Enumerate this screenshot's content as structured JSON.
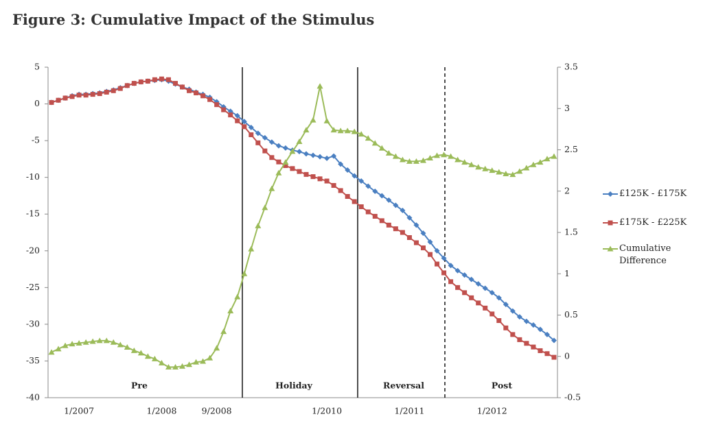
{
  "chart_data": {
    "type": "line",
    "title": "Figure 3: Cumulative Impact of the Stimulus",
    "categories": [
      null,
      null,
      null,
      null,
      "1/2007",
      null,
      null,
      null,
      null,
      null,
      null,
      null,
      null,
      null,
      null,
      null,
      "1/2008",
      null,
      null,
      null,
      null,
      null,
      null,
      null,
      "9/2008",
      null,
      null,
      null,
      null,
      null,
      null,
      null,
      null,
      null,
      null,
      null,
      null,
      null,
      null,
      null,
      "1/2010",
      null,
      null,
      null,
      null,
      null,
      null,
      null,
      null,
      null,
      null,
      null,
      "1/2011",
      null,
      null,
      null,
      null,
      null,
      null,
      null,
      null,
      null,
      null,
      null,
      "1/2012",
      null,
      null,
      null,
      null,
      null,
      null,
      null,
      null,
      null
    ],
    "series": [
      {
        "name": "£125K - £175K",
        "color": "#4a7fc1",
        "marker": "diamond",
        "values": [
          0.2,
          0.5,
          0.8,
          1.1,
          1.3,
          1.3,
          1.4,
          1.5,
          1.7,
          1.9,
          2.2,
          2.5,
          2.8,
          3.0,
          3.1,
          3.2,
          3.3,
          3.1,
          2.7,
          2.3,
          2.0,
          1.6,
          1.3,
          0.9,
          0.3,
          -0.4,
          -1.0,
          -1.6,
          -2.4,
          -3.2,
          -4.0,
          -4.6,
          -5.2,
          -5.7,
          -6.0,
          -6.3,
          -6.5,
          -6.8,
          -7.0,
          -7.2,
          -7.4,
          -7.1,
          -8.2,
          -9.0,
          -9.8,
          -10.5,
          -11.2,
          -11.9,
          -12.5,
          -13.1,
          -13.8,
          -14.5,
          -15.5,
          -16.5,
          -17.6,
          -18.8,
          -20.0,
          -21.0,
          -22.0,
          -22.7,
          -23.3,
          -23.9,
          -24.5,
          -25.1,
          -25.7,
          -26.4,
          -27.3,
          -28.2,
          -29.0,
          -29.6,
          -30.1,
          -30.7,
          -31.4,
          -32.2
        ]
      },
      {
        "name": "£175K - £225K",
        "color": "#c0504d",
        "marker": "square",
        "values": [
          0.2,
          0.5,
          0.8,
          1.0,
          1.2,
          1.2,
          1.3,
          1.4,
          1.6,
          1.8,
          2.1,
          2.5,
          2.8,
          3.0,
          3.1,
          3.3,
          3.4,
          3.3,
          2.8,
          2.3,
          1.8,
          1.5,
          1.1,
          0.6,
          -0.1,
          -0.8,
          -1.5,
          -2.3,
          -3.1,
          -4.2,
          -5.3,
          -6.4,
          -7.3,
          -7.9,
          -8.4,
          -8.8,
          -9.2,
          -9.6,
          -9.9,
          -10.2,
          -10.5,
          -11.1,
          -11.8,
          -12.6,
          -13.3,
          -14.0,
          -14.7,
          -15.3,
          -15.9,
          -16.5,
          -17.0,
          -17.5,
          -18.2,
          -18.9,
          -19.6,
          -20.5,
          -21.8,
          -23.0,
          -24.2,
          -25.0,
          -25.7,
          -26.4,
          -27.1,
          -27.8,
          -28.6,
          -29.5,
          -30.5,
          -31.4,
          -32.1,
          -32.6,
          -33.1,
          -33.6,
          -34.0,
          -34.5
        ]
      },
      {
        "name": "Cumulative Difference",
        "color": "#9bbb59",
        "marker": "triangle",
        "axis": "y2",
        "values": [
          0.05,
          0.09,
          0.13,
          0.15,
          0.16,
          0.17,
          0.18,
          0.19,
          0.19,
          0.17,
          0.14,
          0.11,
          0.07,
          0.04,
          0.0,
          -0.03,
          -0.08,
          -0.13,
          -0.13,
          -0.12,
          -0.1,
          -0.07,
          -0.06,
          -0.02,
          0.1,
          0.3,
          0.55,
          0.72,
          1.0,
          1.3,
          1.58,
          1.8,
          2.03,
          2.22,
          2.35,
          2.48,
          2.6,
          2.74,
          2.86,
          3.27,
          2.85,
          2.74,
          2.73,
          2.73,
          2.72,
          2.69,
          2.64,
          2.58,
          2.52,
          2.46,
          2.42,
          2.38,
          2.36,
          2.36,
          2.37,
          2.4,
          2.43,
          2.44,
          2.42,
          2.38,
          2.35,
          2.32,
          2.29,
          2.27,
          2.25,
          2.23,
          2.21,
          2.2,
          2.24,
          2.28,
          2.32,
          2.35,
          2.39,
          2.42
        ]
      }
    ],
    "ylim": [
      -40,
      5
    ],
    "yticks": [
      5,
      0,
      -5,
      -10,
      -15,
      -20,
      -25,
      -30,
      -35,
      -40
    ],
    "y2lim": [
      -0.5,
      3.5
    ],
    "y2ticks": [
      3.5,
      3,
      2.5,
      2,
      1.5,
      1,
      0.5,
      0,
      -0.5
    ],
    "annotations": [
      "Pre",
      "Holiday",
      "Reversal",
      "Post"
    ],
    "legend": "right",
    "grid": false
  }
}
